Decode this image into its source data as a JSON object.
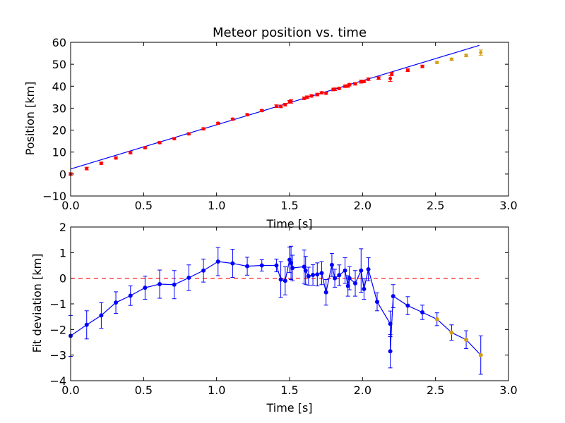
{
  "figure": {
    "title": "Meteor position vs. time"
  },
  "chart_data": [
    {
      "type": "scatter",
      "title": "Meteor position vs. time",
      "xlabel": "Time [s]",
      "ylabel": "Position [km]",
      "xlim": [
        0.0,
        3.0
      ],
      "ylim": [
        -10,
        60
      ],
      "xticks": [
        "0.0",
        "0.5",
        "1.0",
        "1.5",
        "2.0",
        "2.5",
        "3.0"
      ],
      "yticks": [
        "−10",
        "0",
        "10",
        "20",
        "30",
        "40",
        "50",
        "60"
      ],
      "xtick_values": [
        0.0,
        0.5,
        1.0,
        1.5,
        2.0,
        2.5,
        3.0
      ],
      "ytick_values": [
        -10,
        0,
        10,
        20,
        30,
        40,
        50,
        60
      ],
      "grid": false,
      "colors": {
        "fit_line": "#0000ff",
        "measured": "#ff0000",
        "extrapolated": "#d4a017"
      },
      "fit_line": {
        "x": [
          0.0,
          2.8
        ],
        "y": [
          2.3,
          58.6
        ]
      },
      "measured": {
        "x": [
          0.0,
          0.11,
          0.21,
          0.31,
          0.41,
          0.51,
          0.61,
          0.71,
          0.81,
          0.91,
          1.01,
          1.11,
          1.21,
          1.31,
          1.41,
          1.44,
          1.47,
          1.5,
          1.51,
          1.6,
          1.62,
          1.65,
          1.69,
          1.72,
          1.75,
          1.8,
          1.81,
          1.84,
          1.88,
          1.9,
          1.91,
          1.95,
          1.99,
          2.01,
          2.04,
          2.11,
          2.19,
          2.2,
          2.31,
          2.41
        ],
        "y": [
          0.0,
          2.5,
          4.9,
          7.3,
          9.7,
          12.0,
          14.3,
          16.1,
          18.3,
          20.6,
          23.1,
          25.0,
          27.0,
          28.9,
          30.9,
          30.8,
          31.6,
          32.9,
          33.1,
          34.5,
          35.0,
          35.6,
          36.2,
          37.0,
          36.8,
          38.5,
          38.6,
          39.0,
          40.0,
          40.1,
          40.7,
          41.1,
          42.1,
          42.2,
          43.2,
          43.7,
          43.5,
          45.6,
          47.3,
          49.0
        ],
        "yerr": [
          0.6,
          0.6,
          0.5,
          0.5,
          0.5,
          0.5,
          0.5,
          0.5,
          0.5,
          0.5,
          0.5,
          0.5,
          0.5,
          0.5,
          0.6,
          0.6,
          0.6,
          0.6,
          0.8,
          0.6,
          0.6,
          0.6,
          0.6,
          0.5,
          0.5,
          0.6,
          0.6,
          0.6,
          0.6,
          0.6,
          0.6,
          0.6,
          0.7,
          0.6,
          0.6,
          0.6,
          1.3,
          0.8,
          0.6,
          0.6
        ]
      },
      "extrapolated": {
        "x": [
          2.51,
          2.61,
          2.71,
          2.81
        ],
        "y": [
          50.8,
          52.3,
          54.0,
          55.3
        ],
        "yerr": [
          0.5,
          0.5,
          0.6,
          1.2
        ]
      }
    },
    {
      "type": "line",
      "xlabel": "Time [s]",
      "ylabel": "Fit deviation [km]",
      "xlim": [
        0.0,
        3.0
      ],
      "ylim": [
        -4,
        2
      ],
      "xticks": [
        "0.0",
        "0.5",
        "1.0",
        "1.5",
        "2.0",
        "2.5",
        "3.0"
      ],
      "yticks": [
        "−4",
        "−3",
        "−2",
        "−1",
        "0",
        "1",
        "2"
      ],
      "xtick_values": [
        0.0,
        0.5,
        1.0,
        1.5,
        2.0,
        2.5,
        3.0
      ],
      "ytick_values": [
        -4,
        -3,
        -2,
        -1,
        0,
        1,
        2
      ],
      "grid": false,
      "colors": {
        "series": "#0000ff",
        "zero_line": "#ff0000",
        "extrapolated_marker": "#d4a017"
      },
      "zero_line": {
        "y": 0,
        "x": [
          0.0,
          2.8
        ]
      },
      "series": [
        {
          "x": [
            0.0,
            0.11,
            0.21,
            0.31,
            0.41,
            0.51,
            0.61,
            0.71,
            0.81,
            0.91,
            1.01,
            1.11,
            1.21,
            1.31,
            1.41,
            1.44,
            1.47,
            1.5,
            1.51,
            1.52,
            1.6,
            1.61,
            1.63,
            1.66,
            1.69,
            1.72,
            1.75,
            1.79,
            1.81,
            1.84,
            1.88,
            1.9,
            1.91,
            1.95,
            1.99,
            2.01,
            2.04,
            2.1,
            2.19,
            2.19,
            2.21,
            2.31,
            2.41,
            2.51,
            2.61,
            2.71,
            2.81
          ],
          "y": [
            -2.25,
            -1.82,
            -1.45,
            -0.95,
            -0.68,
            -0.37,
            -0.23,
            -0.25,
            0.02,
            0.3,
            0.65,
            0.58,
            0.47,
            0.5,
            0.5,
            -0.05,
            -0.1,
            0.72,
            0.6,
            0.4,
            0.45,
            0.3,
            0.08,
            0.13,
            0.15,
            0.2,
            -0.55,
            0.52,
            0.0,
            0.12,
            0.3,
            -0.3,
            0.0,
            -0.2,
            0.3,
            -0.42,
            0.35,
            -0.92,
            -1.78,
            -2.85,
            -0.7,
            -1.07,
            -1.33,
            -1.6,
            -2.12,
            -2.4,
            -3.0
          ],
          "yerr": [
            0.8,
            0.55,
            0.5,
            0.42,
            0.38,
            0.45,
            0.55,
            0.55,
            0.5,
            0.45,
            0.55,
            0.55,
            0.35,
            0.22,
            0.25,
            0.7,
            0.55,
            0.5,
            0.65,
            0.5,
            0.65,
            0.55,
            0.35,
            0.4,
            0.45,
            0.45,
            0.5,
            0.45,
            0.35,
            0.4,
            0.5,
            0.4,
            0.45,
            0.5,
            0.85,
            0.4,
            0.45,
            0.35,
            0.5,
            0.65,
            0.45,
            0.35,
            0.28,
            0.25,
            0.3,
            0.35,
            0.75
          ],
          "extrapolated_from_index": 43
        }
      ]
    }
  ]
}
